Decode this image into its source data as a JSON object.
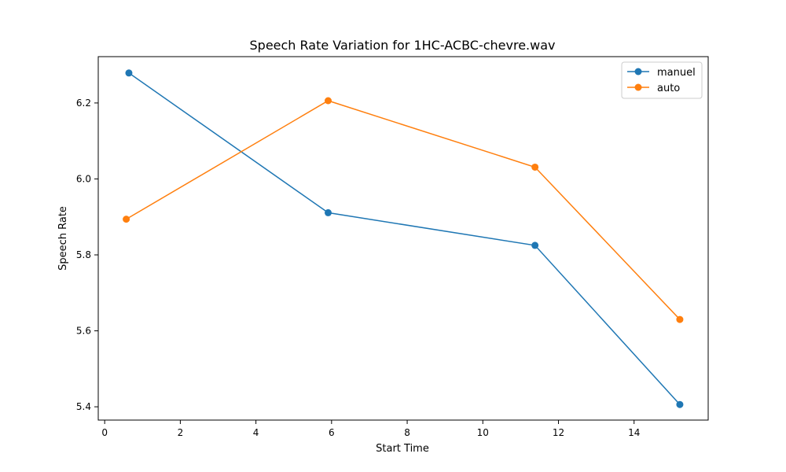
{
  "chart_data": {
    "type": "line",
    "title": "Speech Rate Variation for 1HC-ACBC-chevre.wav",
    "xlabel": "Start Time",
    "ylabel": "Speech Rate",
    "xlim": [
      -0.17,
      15.96
    ],
    "ylim": [
      5.365,
      6.322
    ],
    "xticks": [
      0,
      2,
      4,
      6,
      8,
      10,
      12,
      14
    ],
    "yticks": [
      5.4,
      5.6,
      5.8,
      6.0,
      6.2
    ],
    "xtick_labels": [
      "0",
      "2",
      "4",
      "6",
      "8",
      "10",
      "12",
      "14"
    ],
    "ytick_labels": [
      "5.4",
      "5.6",
      "5.8",
      "6.0",
      "6.2"
    ],
    "grid": false,
    "legend_position": "top-right",
    "series": [
      {
        "name": "manuel",
        "color": "#1f77b4",
        "x": [
          0.64,
          5.91,
          11.38,
          15.21
        ],
        "y": [
          6.279,
          5.911,
          5.825,
          5.406
        ]
      },
      {
        "name": "auto",
        "color": "#ff7f0e",
        "x": [
          0.57,
          5.91,
          11.38,
          15.21
        ],
        "y": [
          5.894,
          6.206,
          6.031,
          5.63
        ]
      }
    ]
  }
}
